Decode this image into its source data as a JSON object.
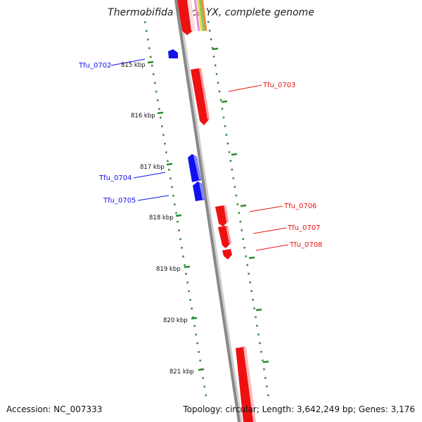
{
  "title": "Thermobifida fusca YX, complete genome",
  "footer": {
    "accession": "Accession: NC_007333",
    "summary": "Topology: circular; Length: 3,642,249 bp; Genes: 3,176"
  },
  "colors": {
    "forward_gene": "#ee1111",
    "reverse_gene": "#1111ee",
    "scale_ticks": "#2a8a2a",
    "backbone": "#888888"
  },
  "ruler": [
    {
      "label": "815 kbp"
    },
    {
      "label": "816 kbp"
    },
    {
      "label": "817 kbp"
    },
    {
      "label": "818 kbp"
    },
    {
      "label": "819 kbp"
    },
    {
      "label": "820 kbp"
    },
    {
      "label": "821 kbp"
    }
  ],
  "genes": [
    {
      "name": "Tfu_0702",
      "strand": "reverse"
    },
    {
      "name": "Tfu_0703",
      "strand": "forward"
    },
    {
      "name": "Tfu_0704",
      "strand": "reverse"
    },
    {
      "name": "Tfu_0705",
      "strand": "reverse"
    },
    {
      "name": "Tfu_0706",
      "strand": "forward"
    },
    {
      "name": "Tfu_0707",
      "strand": "forward"
    },
    {
      "name": "Tfu_0708",
      "strand": "forward"
    }
  ]
}
